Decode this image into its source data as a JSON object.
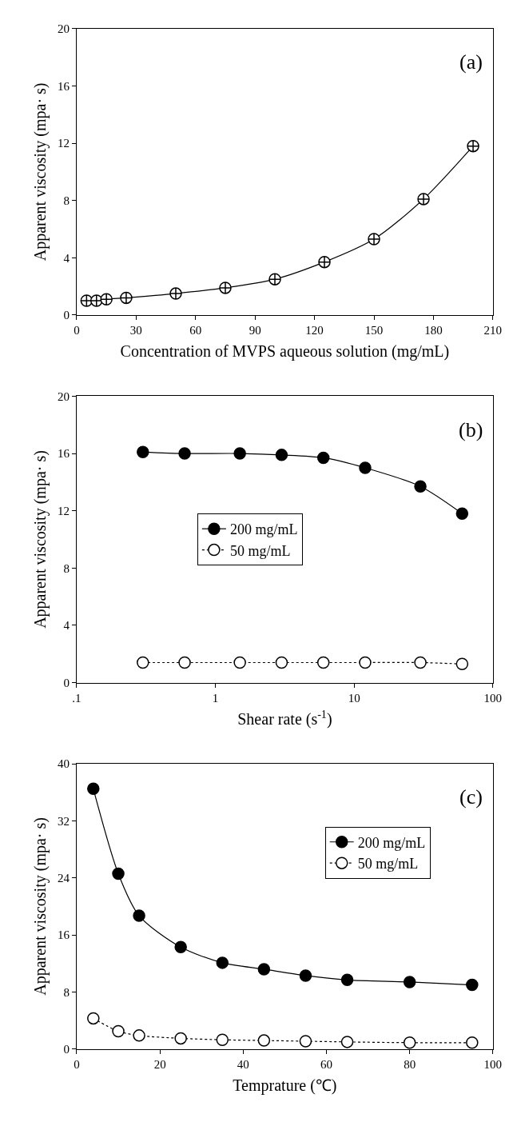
{
  "chart_data": [
    {
      "type": "line",
      "xlabel": "Concentration of MVPS aqueous solution (mg/mL)",
      "ylabel": "Apparent viscosity (mpa· s)",
      "annotations": [
        "(a)"
      ],
      "x": [
        5,
        10,
        15,
        25,
        50,
        75,
        100,
        125,
        150,
        175,
        200
      ],
      "xlim": [
        0,
        210
      ],
      "xticks": [
        0,
        30,
        60,
        90,
        120,
        150,
        180,
        210
      ],
      "ylim": [
        0,
        20
      ],
      "yticks": [
        0,
        4,
        8,
        12,
        16,
        20
      ],
      "legend": false,
      "marker": "cross",
      "series": [
        {
          "color": "#ffffff",
          "line_style": "solid",
          "values": [
            1.0,
            1.0,
            1.1,
            1.2,
            1.5,
            1.9,
            2.5,
            3.7,
            5.3,
            8.1,
            11.8
          ]
        }
      ]
    },
    {
      "type": "line",
      "xlabel": "Shear rate (s$^{-1}$)",
      "ylabel": "Apparent viscosity (mpa· s)",
      "annotations": [
        "(b)"
      ],
      "x": [
        0.3,
        0.6,
        1.5,
        3,
        6,
        12,
        30,
        60
      ],
      "log": "x",
      "xlim": [
        0.1,
        100
      ],
      "xticks": [
        {
          "value": 0.1,
          "label": ".1"
        },
        1,
        10,
        100
      ],
      "ylim": [
        0,
        20
      ],
      "yticks": [
        0,
        4,
        8,
        12,
        16,
        20
      ],
      "legend": "left",
      "marker": "circle",
      "series": [
        {
          "name": "200 mg/mL",
          "color": "#000000",
          "line_style": "solid",
          "values": [
            16.1,
            16.0,
            16.0,
            15.9,
            15.7,
            15.0,
            13.7,
            11.8
          ]
        },
        {
          "name": "50 mg/mL",
          "color": "#ffffff",
          "line_style": "dotted",
          "values": [
            1.4,
            1.4,
            1.4,
            1.4,
            1.4,
            1.4,
            1.4,
            1.3
          ]
        }
      ]
    },
    {
      "type": "line",
      "xlabel": "Temprature (℃)",
      "ylabel": "Apparent viscosity (mpa· s)",
      "annotations": [
        "(c)"
      ],
      "x": [
        4,
        10,
        15,
        25,
        35,
        45,
        55,
        65,
        80,
        95
      ],
      "xlim": [
        0,
        100
      ],
      "xticks": [
        0,
        20,
        40,
        60,
        80,
        100
      ],
      "ylim": [
        0,
        40
      ],
      "yticks": [
        0,
        8,
        16,
        24,
        32,
        40
      ],
      "legend": "top right",
      "marker": "circle",
      "series": [
        {
          "name": "200 mg/mL",
          "color": "#000000",
          "line_style": "solid",
          "values": [
            36.5,
            24.6,
            18.7,
            14.3,
            12.1,
            11.2,
            10.3,
            9.7,
            9.4,
            9.0
          ]
        },
        {
          "name": "50 mg/mL",
          "color": "#ffffff",
          "line_style": "dotted",
          "values": [
            4.3,
            2.5,
            1.9,
            1.5,
            1.3,
            1.2,
            1.1,
            1.0,
            0.9,
            0.9
          ]
        }
      ]
    }
  ]
}
